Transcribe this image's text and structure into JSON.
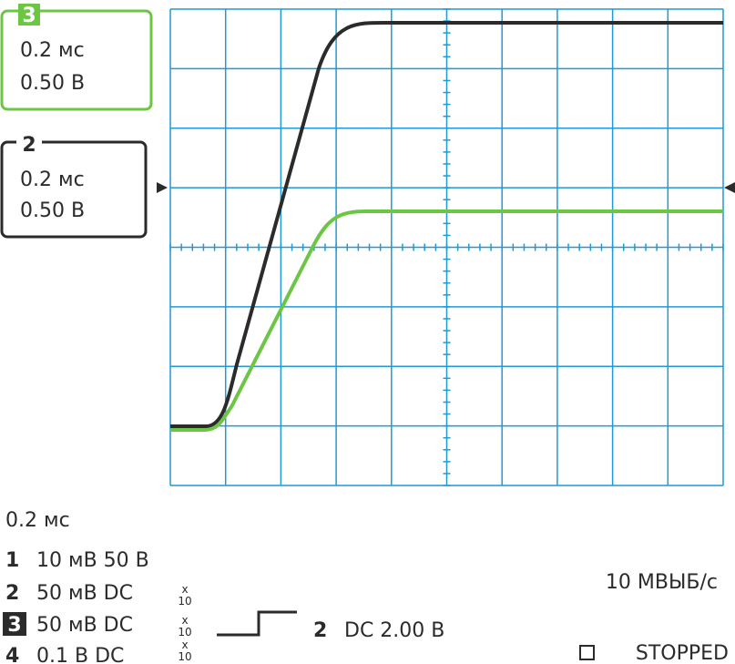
{
  "channel_boxes": [
    {
      "id": "3",
      "time": "0.2 мс",
      "volts": "0.50 В"
    },
    {
      "id": "2",
      "time": "0.2 мс",
      "volts": "0.50 В"
    }
  ],
  "timebase": "0.2 мс",
  "channels": [
    {
      "id": "1",
      "setting": "10 мВ 50 В"
    },
    {
      "id": "2",
      "setting": "50 мВ DC",
      "probe_x": "x",
      "probe": "10"
    },
    {
      "id": "3",
      "setting": "50 мВ DC",
      "probe_x": "x",
      "probe": "10"
    },
    {
      "id": "4",
      "setting": "0.1 В DC",
      "probe_x": "x",
      "probe": "10"
    }
  ],
  "trigger": {
    "channel": "2",
    "setting": "DC 2.00 В"
  },
  "sample_rate": "10 МВЫБ/с",
  "status": "STOPPED"
}
